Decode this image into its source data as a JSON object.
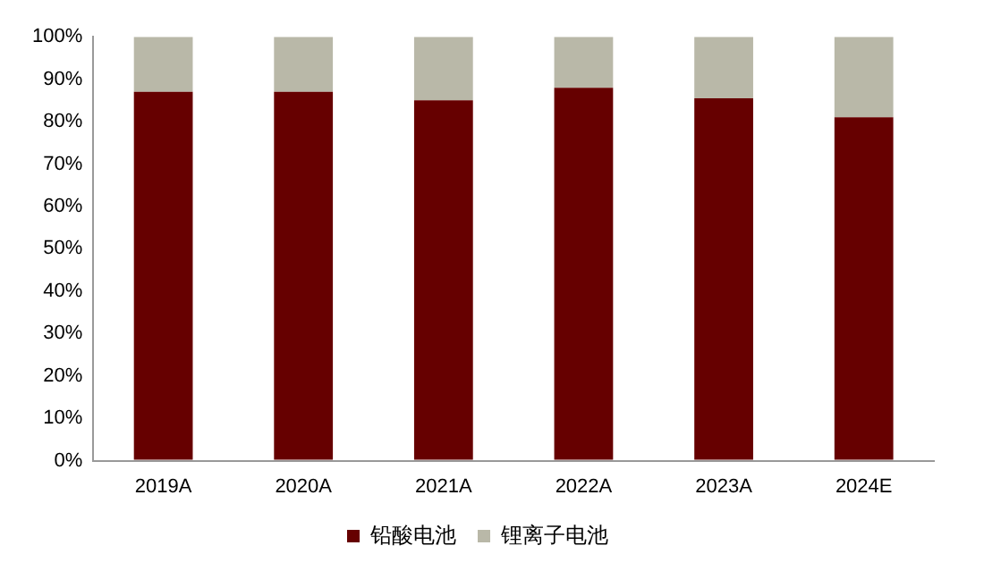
{
  "chart_data": {
    "type": "bar",
    "stacked": true,
    "categories": [
      "2019A",
      "2020A",
      "2021A",
      "2022A",
      "2023A",
      "2024E"
    ],
    "series": [
      {
        "name": "铅酸电池",
        "color": "#660000",
        "values": [
          87,
          87,
          85,
          88,
          85.5,
          81
        ]
      },
      {
        "name": "锂离子电池",
        "color": "#b9b8a8",
        "values": [
          13,
          13,
          15,
          12,
          14.5,
          19
        ]
      }
    ],
    "ylim": [
      0,
      100
    ],
    "yticks": [
      {
        "value": 0,
        "label": "0%"
      },
      {
        "value": 10,
        "label": "10%"
      },
      {
        "value": 20,
        "label": "20%"
      },
      {
        "value": 30,
        "label": "30%"
      },
      {
        "value": 40,
        "label": "40%"
      },
      {
        "value": 50,
        "label": "50%"
      },
      {
        "value": 60,
        "label": "60%"
      },
      {
        "value": 70,
        "label": "70%"
      },
      {
        "value": 80,
        "label": "80%"
      },
      {
        "value": 90,
        "label": "90%"
      },
      {
        "value": 100,
        "label": "100%"
      }
    ],
    "grid": false,
    "legend": "bottom"
  }
}
